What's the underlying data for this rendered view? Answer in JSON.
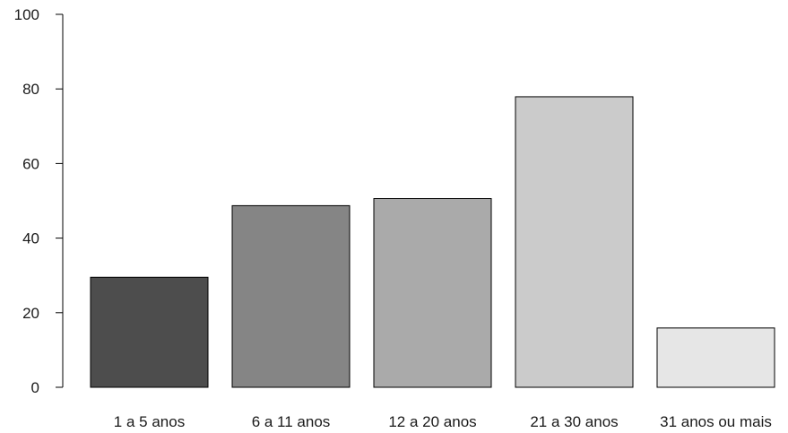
{
  "chart_data": {
    "type": "bar",
    "title": "",
    "xlabel": "",
    "ylabel": "",
    "categories": [
      "1 a 5 anos",
      "6 a 11 anos",
      "12 a 20 anos",
      "21 a 30 anos",
      "31 anos ou mais"
    ],
    "values": [
      29.5,
      48.7,
      50.6,
      77.9,
      15.9
    ],
    "colors": [
      "#4d4d4d",
      "#858585",
      "#aaaaaa",
      "#cbcbcb",
      "#e6e6e6"
    ],
    "ylim": [
      0,
      100
    ],
    "yticks": [
      0,
      20,
      40,
      60,
      80,
      100
    ],
    "grid": false,
    "legend": "none"
  }
}
